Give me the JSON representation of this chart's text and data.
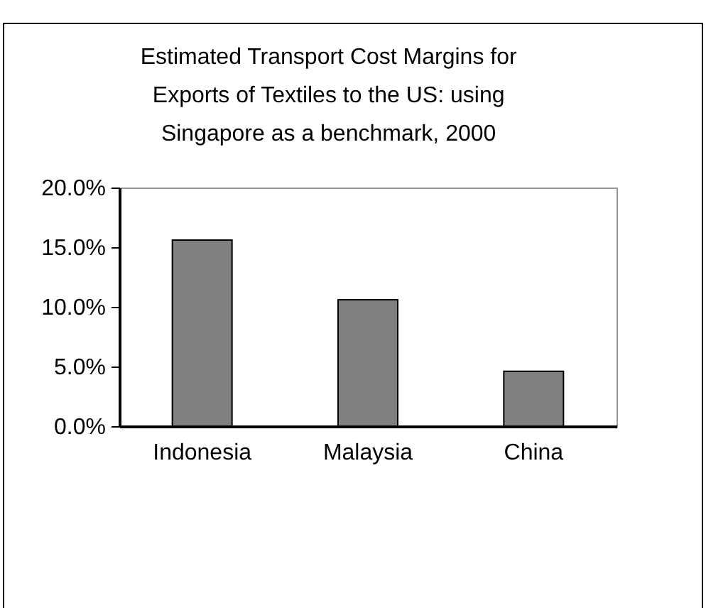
{
  "chart_data": {
    "type": "bar",
    "title": [
      "Estimated Transport Cost Margins for",
      "Exports of Textiles to the US: using",
      "Singapore as a benchmark, 2000"
    ],
    "categories": [
      "Indonesia",
      "Malaysia",
      "China"
    ],
    "values": [
      15.6,
      10.6,
      4.6
    ],
    "color": "#808080",
    "ylim": [
      0,
      20
    ],
    "yticks": [
      {
        "value": 0,
        "label": "0.0%"
      },
      {
        "value": 5,
        "label": "5.0%"
      },
      {
        "value": 10,
        "label": "10.0%"
      },
      {
        "value": 15,
        "label": "15.0%"
      },
      {
        "value": 20,
        "label": "20.0%"
      }
    ],
    "grid": false
  }
}
